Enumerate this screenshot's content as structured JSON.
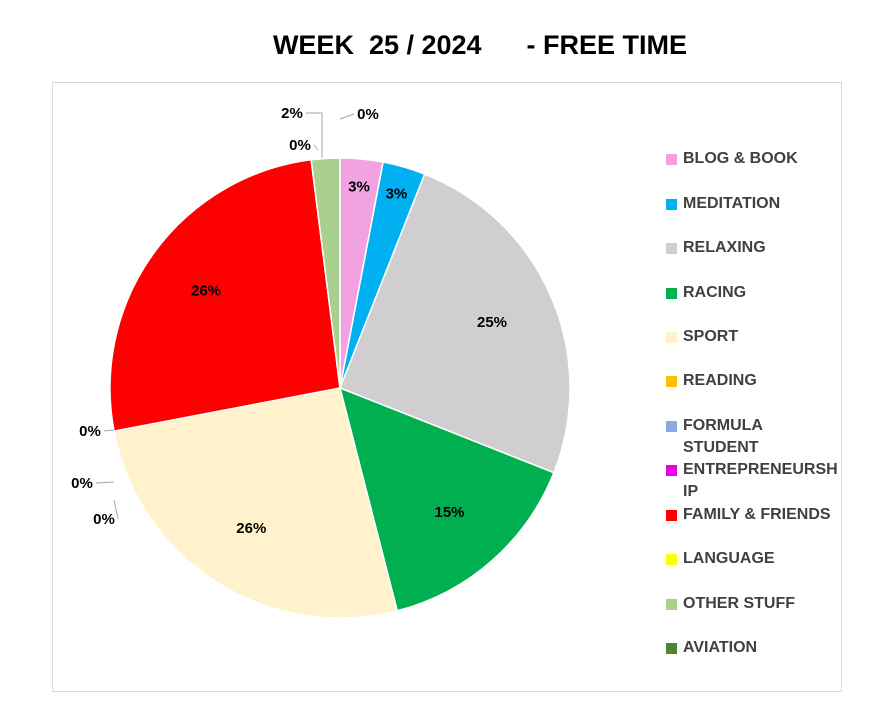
{
  "chart_data": {
    "type": "pie",
    "title": "WEEK  25 / 2024      - FREE TIME",
    "legend_position": "right",
    "slices": [
      {
        "name": "BLOG & BOOK",
        "value": 3,
        "label": "3%",
        "color": "#F2A2E0"
      },
      {
        "name": "MEDITATION",
        "value": 3,
        "label": "3%",
        "color": "#00B0F0"
      },
      {
        "name": "RELAXING",
        "value": 25,
        "label": "25%",
        "color": "#D0CECE"
      },
      {
        "name": "RACING",
        "value": 15,
        "label": "15%",
        "color": "#00B050"
      },
      {
        "name": "SPORT",
        "value": 26,
        "label": "26%",
        "color": "#FFF2CC"
      },
      {
        "name": "READING",
        "value": 0,
        "label": "0%",
        "color": "#FFC000"
      },
      {
        "name": "FORMULA STUDENT",
        "value": 0,
        "label": "0%",
        "color": "#8EA9DB"
      },
      {
        "name": "ENTREPRENEURSHIP",
        "value": 0,
        "label": "0%",
        "color": "#E600E6"
      },
      {
        "name": "FAMILY & FRIENDS",
        "value": 26,
        "label": "26%",
        "color": "#FF0000"
      },
      {
        "name": "LANGUAGE",
        "value": 0,
        "label": "0%",
        "color": "#FFFF00"
      },
      {
        "name": "OTHER STUFF",
        "value": 2,
        "label": "2%",
        "color": "#A9D08E"
      },
      {
        "name": "AVIATION",
        "value": 0,
        "label": "0%",
        "color": "#548235"
      }
    ]
  }
}
